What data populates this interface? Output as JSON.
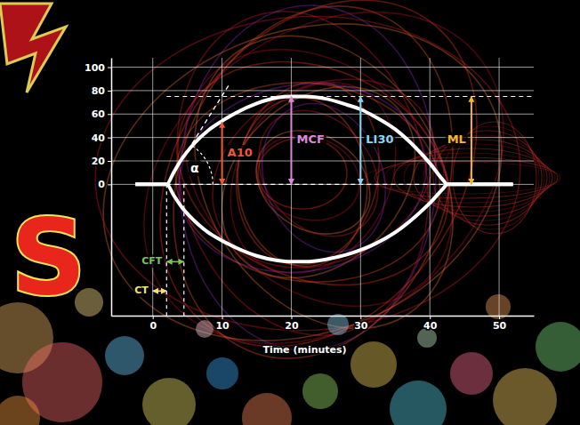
{
  "chart_data": {
    "type": "line",
    "watermark": "S",
    "x_label": "Time (minutes)",
    "x": [
      -2.5,
      0,
      2,
      3,
      4,
      6,
      8,
      10,
      12,
      15,
      18,
      20,
      22,
      25,
      28,
      30,
      32,
      35,
      38,
      40,
      42,
      42.5,
      45,
      52
    ],
    "series": [
      {
        "color": "#ffffff",
        "values": [
          0,
          0,
          0,
          10,
          20,
          35,
          46,
          54,
          61,
          69,
          74,
          75,
          75,
          73,
          68,
          64,
          58,
          47,
          31,
          18,
          3,
          0,
          0,
          0
        ]
      },
      {
        "color": "#ffffff",
        "values": [
          0,
          0,
          0,
          -9,
          -18,
          -31,
          -41,
          -48,
          -54,
          -61,
          -65,
          -66,
          -66,
          -64,
          -60,
          -56,
          -51,
          -41,
          -27,
          -16,
          -3,
          0,
          0,
          0
        ]
      }
    ],
    "xlim": [
      -6,
      55
    ],
    "xticks": [
      0,
      10,
      20,
      30,
      40,
      50
    ],
    "ylim": [
      -112,
      108
    ],
    "yticks": [
      0,
      20,
      40,
      60,
      80,
      100
    ],
    "grid": true,
    "annotations": [
      {
        "text": "A10",
        "x": 10,
        "from": 0,
        "to": 53,
        "color": "#f0573a"
      },
      {
        "text": "MCF",
        "x": 20,
        "from": 0,
        "to": 75,
        "color": "#d88ad8"
      },
      {
        "text": "LI30",
        "x": 30,
        "from": 0,
        "to": 75,
        "color": "#8fd3f2"
      },
      {
        "text": "ML",
        "x": 46,
        "from": 0,
        "to": 75,
        "color": "#f2b632"
      }
    ],
    "intervals": [
      {
        "text": "CFT",
        "from": 2,
        "to": 4.5,
        "y": -66,
        "color": "#7cc35a"
      },
      {
        "text": "CT",
        "from": 0,
        "to": 2,
        "y": -91,
        "color": "#f3e27a"
      }
    ],
    "angle": {
      "text": "α",
      "x0": 2,
      "y0": 0,
      "x1": 11,
      "y1": 85
    },
    "reference_lines": [
      {
        "y": 75,
        "from": 2,
        "to": 55
      },
      {
        "y": 0,
        "from": 2,
        "to": 42.5
      }
    ],
    "vertical_lines": [
      {
        "x": 2,
        "from": 0,
        "to": -112
      },
      {
        "x": 4.5,
        "from": 0,
        "to": -112
      }
    ]
  }
}
